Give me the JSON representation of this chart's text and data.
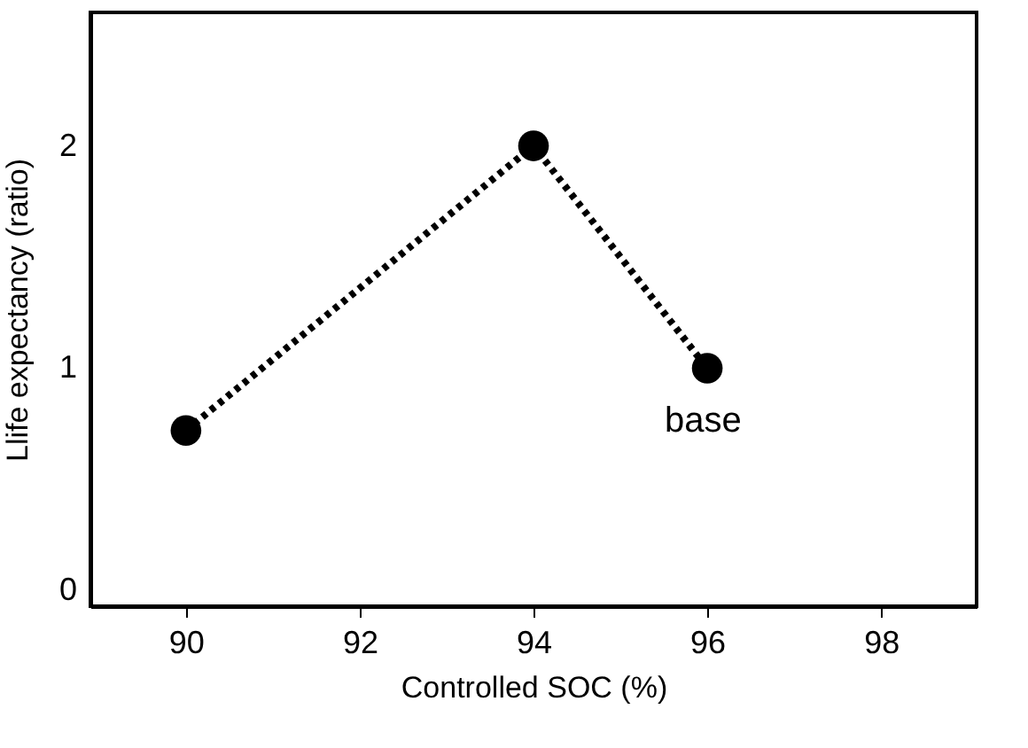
{
  "chart_data": {
    "type": "line",
    "xlabel": "Controlled SOC (%)",
    "ylabel": "Llife expectancy (ratio)",
    "x": [
      90,
      94,
      96
    ],
    "series": [
      {
        "color": "#000000",
        "values": [
          0.72,
          2.0,
          1.0
        ]
      }
    ],
    "xlim": [
      88.9,
      99.1
    ],
    "xticks": [
      90,
      92,
      94,
      96,
      98
    ],
    "ylim": [
      -0.07,
      2.6
    ],
    "yticks": [
      0,
      1,
      2
    ],
    "marker": "circle",
    "line_style": "dotted",
    "grid": false,
    "annotations": [
      {
        "text": "base",
        "x": 96,
        "y": 1.0
      }
    ]
  }
}
